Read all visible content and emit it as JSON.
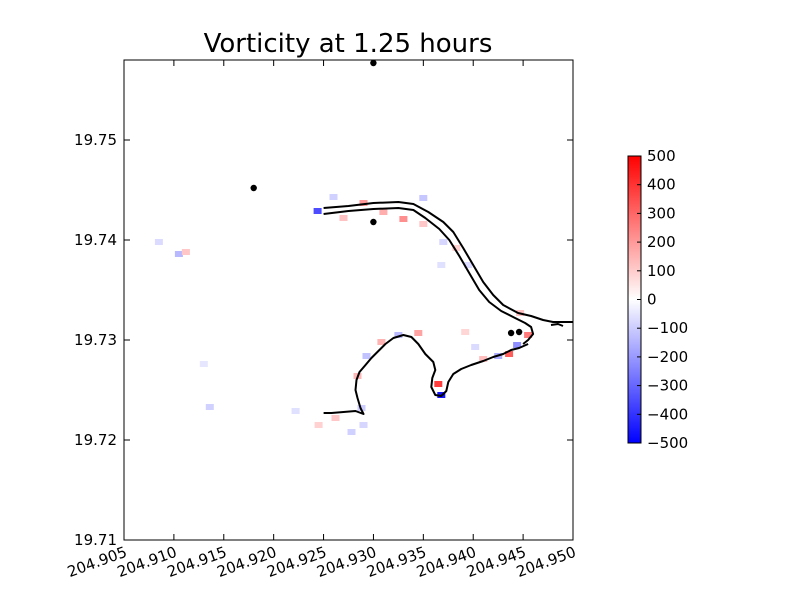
{
  "chart_data": {
    "type": "heatmap",
    "title": "Vorticity at 1.25 hours",
    "xlabel": "",
    "ylabel": "",
    "xlim": [
      204.905,
      204.95
    ],
    "ylim": [
      19.71,
      19.758
    ],
    "x_ticks": [
      "204.905",
      "204.910",
      "204.915",
      "204.920",
      "204.925",
      "204.930",
      "204.935",
      "204.940",
      "204.945",
      "204.950"
    ],
    "x_tick_values": [
      204.905,
      204.91,
      204.915,
      204.92,
      204.925,
      204.93,
      204.935,
      204.94,
      204.945,
      204.95
    ],
    "y_ticks": [
      "19.71",
      "19.72",
      "19.73",
      "19.74",
      "19.75"
    ],
    "y_tick_values": [
      19.71,
      19.72,
      19.73,
      19.74,
      19.75
    ],
    "grid": false,
    "colorbar": {
      "cmap": "bwr",
      "vmin": -500,
      "vmax": 500,
      "ticks": [
        "500",
        "400",
        "300",
        "200",
        "100",
        "0",
        "−100",
        "−200",
        "−300",
        "−400",
        "−500"
      ],
      "tick_values": [
        500,
        400,
        300,
        200,
        100,
        0,
        -100,
        -200,
        -300,
        -400,
        -500
      ],
      "colors": {
        "high": "#ff0000",
        "mid": "#ffffff",
        "low": "#0000ff"
      }
    },
    "gauge_points": [
      {
        "x": 204.93,
        "y": 19.7577
      },
      {
        "x": 204.918,
        "y": 19.7452
      },
      {
        "x": 204.93,
        "y": 19.7418
      },
      {
        "x": 204.9438,
        "y": 19.7307
      },
      {
        "x": 204.9446,
        "y": 19.7308
      }
    ],
    "coastline": [
      [
        [
          204.925,
          19.7432
        ],
        [
          204.9275,
          19.7434
        ],
        [
          204.93,
          19.7437
        ],
        [
          204.9325,
          19.7438
        ],
        [
          204.934,
          19.7436
        ],
        [
          204.9355,
          19.7428
        ],
        [
          204.937,
          19.7418
        ],
        [
          204.938,
          19.7408
        ],
        [
          204.939,
          19.7392
        ],
        [
          204.94,
          19.7375
        ],
        [
          204.941,
          19.7358
        ],
        [
          204.942,
          19.7345
        ],
        [
          204.943,
          19.7335
        ],
        [
          204.9445,
          19.7327
        ],
        [
          204.9458,
          19.7324
        ],
        [
          204.947,
          19.732
        ],
        [
          204.948,
          19.7318
        ],
        [
          204.95,
          19.7318
        ]
      ],
      [
        [
          204.925,
          19.7426
        ],
        [
          204.9275,
          19.7429
        ],
        [
          204.93,
          19.7431
        ],
        [
          204.9325,
          19.7432
        ],
        [
          204.934,
          19.743
        ],
        [
          204.9352,
          19.7422
        ],
        [
          204.9366,
          19.7411
        ],
        [
          204.9376,
          19.74
        ],
        [
          204.9386,
          19.7384
        ],
        [
          204.9396,
          19.7367
        ],
        [
          204.9406,
          19.735
        ],
        [
          204.9416,
          19.7338
        ],
        [
          204.9428,
          19.7329
        ],
        [
          204.9442,
          19.7322
        ],
        [
          204.9452,
          19.7317
        ],
        [
          204.9458,
          19.7313
        ],
        [
          204.946,
          19.7306
        ],
        [
          204.9455,
          19.73
        ],
        [
          204.945,
          19.7296
        ]
      ],
      [
        [
          204.9455,
          19.7296
        ],
        [
          204.9446,
          19.7292
        ],
        [
          204.9438,
          19.729
        ],
        [
          204.943,
          19.7286
        ],
        [
          204.942,
          19.7283
        ],
        [
          204.941,
          19.7279
        ],
        [
          204.9398,
          19.7275
        ],
        [
          204.9388,
          19.7271
        ],
        [
          204.938,
          19.7266
        ],
        [
          204.9375,
          19.7258
        ],
        [
          204.9373,
          19.7249
        ],
        [
          204.9368,
          19.7244
        ],
        [
          204.9362,
          19.7245
        ],
        [
          204.9358,
          19.7253
        ],
        [
          204.9359,
          19.7262
        ],
        [
          204.9362,
          19.727
        ],
        [
          204.936,
          19.7278
        ],
        [
          204.9352,
          19.7286
        ],
        [
          204.9345,
          19.7296
        ],
        [
          204.9338,
          19.7303
        ],
        [
          204.933,
          19.7305
        ],
        [
          204.932,
          19.7302
        ],
        [
          204.9312,
          19.7296
        ],
        [
          204.9305,
          19.7289
        ],
        [
          204.9298,
          19.7282
        ],
        [
          204.9292,
          19.7275
        ],
        [
          204.9286,
          19.7268
        ],
        [
          204.9283,
          19.726
        ],
        [
          204.9282,
          19.725
        ],
        [
          204.9284,
          19.7242
        ],
        [
          204.9287,
          19.7232
        ],
        [
          204.929,
          19.7226
        ],
        [
          204.9282,
          19.7229
        ],
        [
          204.927,
          19.7228
        ],
        [
          204.9258,
          19.7227
        ],
        [
          204.925,
          19.7227
        ]
      ],
      [
        [
          204.9478,
          19.7315
        ],
        [
          204.9485,
          19.7316
        ],
        [
          204.949,
          19.7314
        ]
      ]
    ],
    "vorticity_patches": [
      {
        "x": 204.9244,
        "y": 19.7429,
        "v": -350
      },
      {
        "x": 204.927,
        "y": 19.7422,
        "v": 120
      },
      {
        "x": 204.931,
        "y": 19.7428,
        "v": 160
      },
      {
        "x": 204.933,
        "y": 19.7421,
        "v": 220
      },
      {
        "x": 204.935,
        "y": 19.7416,
        "v": 110
      },
      {
        "x": 204.929,
        "y": 19.7437,
        "v": 200
      },
      {
        "x": 204.926,
        "y": 19.7443,
        "v": -90
      },
      {
        "x": 204.935,
        "y": 19.7442,
        "v": -110
      },
      {
        "x": 204.937,
        "y": 19.7398,
        "v": -80
      },
      {
        "x": 204.9383,
        "y": 19.7392,
        "v": 90
      },
      {
        "x": 204.9395,
        "y": 19.7375,
        "v": -70
      },
      {
        "x": 204.9447,
        "y": 19.7327,
        "v": 120
      },
      {
        "x": 204.9455,
        "y": 19.7305,
        "v": 260
      },
      {
        "x": 204.9444,
        "y": 19.7295,
        "v": -220
      },
      {
        "x": 204.9436,
        "y": 19.7286,
        "v": 320
      },
      {
        "x": 204.9425,
        "y": 19.7284,
        "v": -160
      },
      {
        "x": 204.941,
        "y": 19.7281,
        "v": 130
      },
      {
        "x": 204.9365,
        "y": 19.7256,
        "v": 380
      },
      {
        "x": 204.9368,
        "y": 19.7245,
        "v": -460
      },
      {
        "x": 204.9345,
        "y": 19.7307,
        "v": 180
      },
      {
        "x": 204.9325,
        "y": 19.7305,
        "v": -140
      },
      {
        "x": 204.9308,
        "y": 19.7298,
        "v": 150
      },
      {
        "x": 204.9293,
        "y": 19.7284,
        "v": -120
      },
      {
        "x": 204.9284,
        "y": 19.7264,
        "v": 140
      },
      {
        "x": 204.9288,
        "y": 19.7232,
        "v": -100
      },
      {
        "x": 204.9262,
        "y": 19.7222,
        "v": 110
      },
      {
        "x": 204.9245,
        "y": 19.7215,
        "v": 90
      },
      {
        "x": 204.9278,
        "y": 19.7208,
        "v": -90
      },
      {
        "x": 204.929,
        "y": 19.7215,
        "v": -80
      },
      {
        "x": 204.9222,
        "y": 19.7229,
        "v": -60
      },
      {
        "x": 204.9136,
        "y": 19.7233,
        "v": -90
      },
      {
        "x": 204.9105,
        "y": 19.7386,
        "v": -140
      },
      {
        "x": 204.9112,
        "y": 19.7388,
        "v": 110
      },
      {
        "x": 204.9085,
        "y": 19.7398,
        "v": -70
      },
      {
        "x": 204.913,
        "y": 19.7276,
        "v": -50
      },
      {
        "x": 204.9368,
        "y": 19.7375,
        "v": -60
      },
      {
        "x": 204.9392,
        "y": 19.7308,
        "v": 80
      },
      {
        "x": 204.9402,
        "y": 19.7293,
        "v": -70
      }
    ]
  }
}
